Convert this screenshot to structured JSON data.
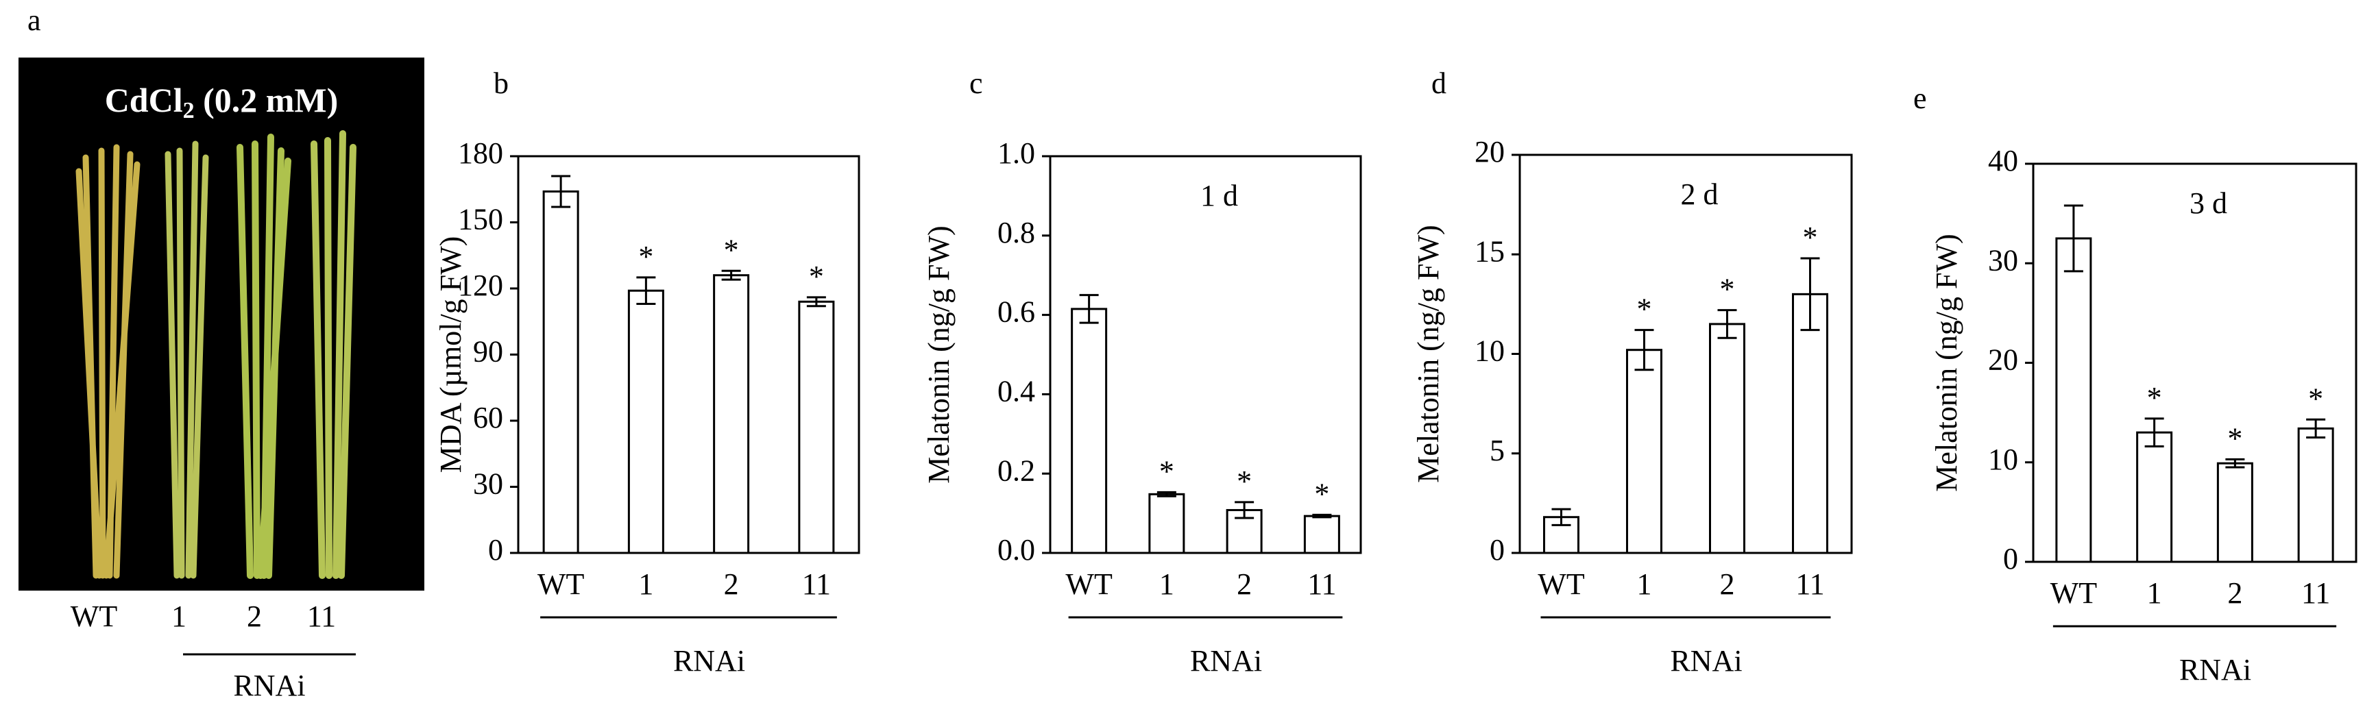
{
  "panel_a": {
    "label": "a",
    "title": [
      "CdCl",
      "2",
      " (0.2 mM)"
    ],
    "categories": [
      "WT",
      "1",
      "2",
      "11"
    ],
    "group_label": "RNAi"
  },
  "chart_data": [
    {
      "type": "bar",
      "label": "b",
      "ylabel": "MDA (µmol/g FW)",
      "categories": [
        "WT",
        "1",
        "2",
        "11"
      ],
      "group_label": "RNAi",
      "values": [
        164,
        119,
        126,
        114
      ],
      "errors": [
        7,
        6,
        2,
        2
      ],
      "markers": [
        null,
        "*",
        "*",
        "*"
      ],
      "ylim": [
        0,
        180
      ],
      "yticks": [
        0,
        30,
        60,
        90,
        120,
        150,
        180
      ],
      "color": "#ffffff"
    },
    {
      "type": "bar",
      "label": "c",
      "ylabel": "Melatonin (ng/g FW)",
      "annotation": "1 d",
      "categories": [
        "WT",
        "1",
        "2",
        "11"
      ],
      "group_label": "RNAi",
      "values": [
        0.615,
        0.148,
        0.108,
        0.093
      ],
      "errors": [
        0.035,
        0.005,
        0.02,
        0.003
      ],
      "markers": [
        null,
        "*",
        "*",
        "*"
      ],
      "ylim": [
        0,
        1
      ],
      "yticks": [
        {
          "value": 0,
          "label": "0.0"
        },
        0.2,
        0.4,
        0.6,
        0.8,
        {
          "value": 1,
          "label": "1.0"
        }
      ],
      "color": "#ffffff"
    },
    {
      "type": "bar",
      "label": "d",
      "ylabel": "Melatonin (ng/g FW)",
      "annotation": "2 d",
      "categories": [
        "WT",
        "1",
        "2",
        "11"
      ],
      "group_label": "RNAi",
      "values": [
        1.8,
        10.2,
        11.5,
        13.0
      ],
      "errors": [
        0.4,
        1.0,
        0.7,
        1.8
      ],
      "markers": [
        null,
        "*",
        "*",
        "*"
      ],
      "ylim": [
        0,
        20
      ],
      "yticks": [
        0,
        5,
        10,
        15,
        20
      ],
      "color": "#ffffff"
    },
    {
      "type": "bar",
      "label": "e",
      "ylabel": "Melatonin (ng/g FW)",
      "annotation": "3 d",
      "categories": [
        "WT",
        "1",
        "2",
        "11"
      ],
      "group_label": "RNAi",
      "values": [
        32.5,
        13.0,
        9.9,
        13.4
      ],
      "errors": [
        3.3,
        1.4,
        0.4,
        0.9
      ],
      "markers": [
        null,
        "*",
        "*",
        "*"
      ],
      "ylim": [
        0,
        40
      ],
      "yticks": [
        0,
        10,
        20,
        30,
        40
      ],
      "color": "#ffffff"
    }
  ]
}
